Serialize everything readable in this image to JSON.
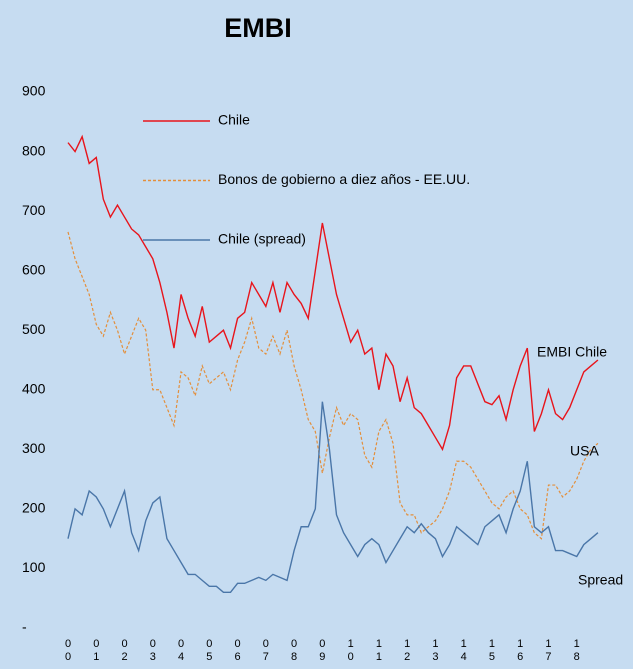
{
  "chart_data": {
    "type": "line",
    "title": "EMBI",
    "x": [
      0,
      0.25,
      0.5,
      0.75,
      1,
      1.25,
      1.5,
      1.75,
      2,
      2.25,
      2.5,
      2.75,
      3,
      3.25,
      3.5,
      3.75,
      4,
      4.25,
      4.5,
      4.75,
      5,
      5.25,
      5.5,
      5.75,
      6,
      6.25,
      6.5,
      6.75,
      7,
      7.25,
      7.5,
      7.75,
      8,
      8.25,
      8.5,
      8.75,
      9,
      9.25,
      9.5,
      9.75,
      10,
      10.25,
      10.5,
      10.75,
      11,
      11.25,
      11.5,
      11.75,
      12,
      12.25,
      12.5,
      12.75,
      13,
      13.25,
      13.5,
      13.75,
      14,
      14.25,
      14.5,
      14.75,
      15,
      15.25,
      15.5,
      15.75,
      16,
      16.25,
      16.5,
      16.75,
      17,
      17.25,
      17.5,
      17.75,
      18,
      18.25,
      18.5,
      18.75
    ],
    "series": [
      {
        "name": "Chile",
        "color": "#e8141b",
        "dash": false,
        "values": [
          815,
          800,
          825,
          780,
          790,
          720,
          690,
          710,
          690,
          670,
          660,
          640,
          620,
          580,
          530,
          470,
          560,
          520,
          490,
          540,
          480,
          490,
          500,
          470,
          520,
          530,
          580,
          560,
          540,
          580,
          530,
          580,
          560,
          545,
          520,
          600,
          680,
          620,
          560,
          520,
          480,
          500,
          460,
          470,
          400,
          460,
          440,
          380,
          420,
          370,
          360,
          340,
          320,
          300,
          340,
          420,
          440,
          440,
          410,
          380,
          375,
          390,
          350,
          400,
          440,
          470,
          330,
          360,
          400,
          360,
          350,
          370,
          400,
          430,
          440,
          450
        ]
      },
      {
        "name": "Bonos de gobierno a diez años - EE.UU.",
        "color": "#e38f3c",
        "dash": true,
        "values": [
          665,
          620,
          590,
          560,
          510,
          490,
          530,
          500,
          460,
          490,
          520,
          500,
          400,
          400,
          370,
          340,
          430,
          420,
          390,
          440,
          410,
          420,
          430,
          400,
          450,
          480,
          520,
          470,
          460,
          490,
          460,
          500,
          440,
          400,
          350,
          330,
          260,
          320,
          370,
          340,
          360,
          350,
          290,
          270,
          330,
          350,
          310,
          210,
          190,
          190,
          160,
          170,
          180,
          200,
          230,
          280,
          280,
          270,
          250,
          230,
          210,
          200,
          220,
          230,
          200,
          190,
          160,
          150,
          240,
          240,
          220,
          230,
          250,
          280,
          300,
          310
        ]
      },
      {
        "name": "Chile (spread)",
        "color": "#4a76a8",
        "dash": false,
        "values": [
          150,
          200,
          190,
          230,
          220,
          200,
          170,
          200,
          230,
          160,
          130,
          180,
          210,
          220,
          150,
          130,
          110,
          90,
          90,
          80,
          70,
          70,
          60,
          60,
          75,
          75,
          80,
          85,
          80,
          90,
          85,
          80,
          130,
          170,
          170,
          200,
          380,
          300,
          190,
          160,
          140,
          120,
          140,
          150,
          140,
          110,
          130,
          150,
          170,
          160,
          175,
          160,
          150,
          120,
          140,
          170,
          160,
          150,
          140,
          170,
          180,
          190,
          160,
          200,
          230,
          280,
          170,
          160,
          170,
          130,
          130,
          125,
          120,
          140,
          150,
          160
        ]
      }
    ],
    "annotations": [
      "EMBI Chile",
      "USA",
      "Spread"
    ],
    "xlim": [
      0,
      19
    ],
    "xticks": [
      {
        "value": 0,
        "label": "00"
      },
      {
        "value": 1,
        "label": "01"
      },
      {
        "value": 2,
        "label": "02"
      },
      {
        "value": 3,
        "label": "03"
      },
      {
        "value": 4,
        "label": "04"
      },
      {
        "value": 5,
        "label": "05"
      },
      {
        "value": 6,
        "label": "06"
      },
      {
        "value": 7,
        "label": "07"
      },
      {
        "value": 8,
        "label": "08"
      },
      {
        "value": 9,
        "label": "09"
      },
      {
        "value": 10,
        "label": "10"
      },
      {
        "value": 11,
        "label": "11"
      },
      {
        "value": 12,
        "label": "12"
      },
      {
        "value": 13,
        "label": "13"
      },
      {
        "value": 14,
        "label": "14"
      },
      {
        "value": 15,
        "label": "15"
      },
      {
        "value": 16,
        "label": "16"
      },
      {
        "value": 17,
        "label": "17"
      },
      {
        "value": 18,
        "label": "18"
      }
    ],
    "ylim": [
      0,
      900
    ],
    "yticks": [
      {
        "value": 0,
        "label": "-"
      },
      100,
      200,
      300,
      400,
      500,
      600,
      700,
      800,
      900
    ],
    "grid": false
  }
}
